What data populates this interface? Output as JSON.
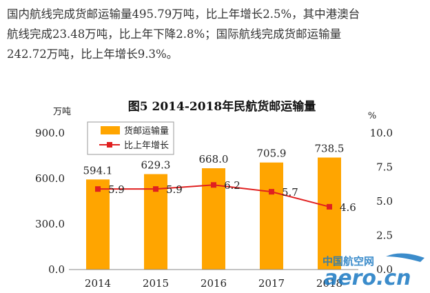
{
  "paragraph": {
    "lines": [
      "国内航线完成货邮运输量495.79万吨，比上年增长2.5%，其中港澳台",
      "航线完成23.48万吨，比上年下降2.8%；国际航线完成货邮运输量",
      "242.72万吨，比上年增长9.3%。"
    ]
  },
  "chart_data": {
    "type": "bar",
    "title": "图5 2014-2018年民航货邮运输量",
    "categories": [
      "2014",
      "2015",
      "2016",
      "2017",
      "2018"
    ],
    "left_unit": "万吨",
    "right_unit": "%",
    "ylim": [
      0,
      900
    ],
    "y2lim": [
      0,
      10
    ],
    "left_ticks": [
      "0.0",
      "300.0",
      "600.0",
      "900.0"
    ],
    "left_tick_values": [
      0,
      300,
      600,
      900
    ],
    "right_ticks": [
      "0.0",
      "2.5",
      "5.0",
      "7.5",
      "10.0"
    ],
    "right_tick_values": [
      0,
      2.5,
      5,
      7.5,
      10
    ],
    "series": [
      {
        "name": "货邮运输量",
        "kind": "bar",
        "axis": "left",
        "color": "#ffa500",
        "values": [
          594.1,
          629.3,
          668.0,
          705.9,
          738.5
        ],
        "labels": [
          "594.1",
          "629.3",
          "668.0",
          "705.9",
          "738.5"
        ]
      },
      {
        "name": "比上年增长",
        "kind": "line",
        "axis": "right",
        "color": "#e02020",
        "values": [
          5.9,
          5.9,
          6.2,
          5.7,
          4.6
        ],
        "labels": [
          "5.9",
          "5.9",
          "6.2",
          "5.7",
          "4.6"
        ]
      }
    ],
    "legend_position": "top-left"
  },
  "watermark": {
    "cn": "中国航空网",
    "en": "aero.cn",
    "color": "#1a78c2"
  }
}
